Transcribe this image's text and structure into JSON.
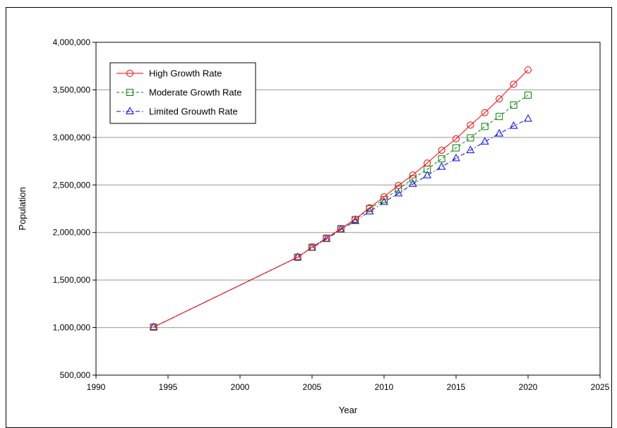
{
  "chart_data": {
    "type": "line",
    "xlabel": "Year",
    "ylabel": "Population",
    "xlim": [
      1990,
      2025
    ],
    "ylim": [
      500000,
      4000000
    ],
    "x_ticks": [
      1990,
      1995,
      2000,
      2005,
      2010,
      2015,
      2020,
      2025
    ],
    "x_tick_labels": [
      "1990",
      "1995",
      "2000",
      "2005",
      "2010",
      "2015",
      "2020",
      "2025"
    ],
    "y_ticks": [
      500000,
      1000000,
      1500000,
      2000000,
      2500000,
      3000000,
      3500000,
      4000000
    ],
    "y_tick_labels": [
      "500,000",
      "1,000,000",
      "1,500,000",
      "2,000,000",
      "2,500,000",
      "3,000,000",
      "3,500,000",
      "4,000,000"
    ],
    "grid": "horizontal",
    "legend_position": "top-left",
    "x": [
      1994,
      2004,
      2005,
      2006,
      2007,
      2008,
      2009,
      2010,
      2011,
      2012,
      2013,
      2014,
      2015,
      2016,
      2017,
      2018,
      2019,
      2020
    ],
    "series": [
      {
        "name": "High Growth Rate",
        "color": "#ff0000",
        "marker": "circle",
        "line_style": "solid",
        "values": [
          1005000,
          1740000,
          1845000,
          1940000,
          2040000,
          2140000,
          2260000,
          2375000,
          2495000,
          2605000,
          2730000,
          2865000,
          2985000,
          3130000,
          3260000,
          3405000,
          3560000,
          3710000
        ]
      },
      {
        "name": "Moderate Growth Rate",
        "color": "#008000",
        "marker": "square",
        "line_style": "dashed",
        "values": [
          1005000,
          1740000,
          1845000,
          1940000,
          2040000,
          2135000,
          2250000,
          2345000,
          2455000,
          2565000,
          2665000,
          2775000,
          2890000,
          2995000,
          3115000,
          3220000,
          3340000,
          3445000
        ]
      },
      {
        "name": "Limited Grouwth Rate",
        "color": "#0000ff",
        "marker": "triangle",
        "line_style": "dashdot",
        "values": [
          1005000,
          1740000,
          1840000,
          1930000,
          2030000,
          2120000,
          2220000,
          2320000,
          2410000,
          2510000,
          2600000,
          2690000,
          2780000,
          2865000,
          2955000,
          3040000,
          3120000,
          3195000
        ]
      }
    ]
  }
}
